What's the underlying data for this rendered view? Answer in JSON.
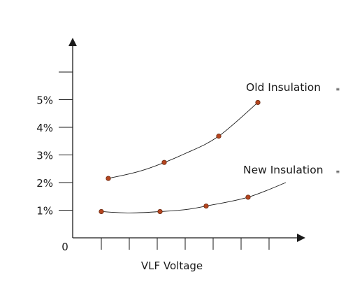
{
  "chart_data": {
    "type": "scatter",
    "xlabel": "VLF Voltage",
    "ylabel": "",
    "origin_label": "0",
    "y_ticks": [
      "1%",
      "2%",
      "3%",
      "4%",
      "5%"
    ],
    "ylim": [
      0,
      6.5
    ],
    "xlim": [
      0,
      7
    ],
    "x_tick_count": 7,
    "grid": false,
    "series": [
      {
        "name": "Old Insulation",
        "name_suffix": "≡",
        "points": [
          [
            0.25,
            2.15
          ],
          [
            2.25,
            2.73
          ],
          [
            4.2,
            3.68
          ],
          [
            5.6,
            4.9
          ]
        ],
        "curve": [
          [
            0.25,
            2.15
          ],
          [
            1.5,
            2.45
          ],
          [
            3.0,
            3.05
          ],
          [
            4.2,
            3.68
          ],
          [
            5.6,
            4.9
          ]
        ]
      },
      {
        "name": "New Insulation",
        "name_suffix": "≡",
        "points": [
          [
            0.0,
            0.95
          ],
          [
            2.1,
            0.95
          ],
          [
            3.75,
            1.15
          ],
          [
            5.25,
            1.47
          ]
        ],
        "curve": [
          [
            0.0,
            0.95
          ],
          [
            1.0,
            0.9
          ],
          [
            2.1,
            0.95
          ],
          [
            3.0,
            1.02
          ],
          [
            3.75,
            1.15
          ],
          [
            5.25,
            1.47
          ],
          [
            6.6,
            2.0
          ]
        ]
      }
    ],
    "colors": {
      "marker": "#b5451f",
      "marker_stroke": "#6b2a12",
      "line": "#1a1a1a",
      "axis": "#1a1a1a"
    }
  }
}
